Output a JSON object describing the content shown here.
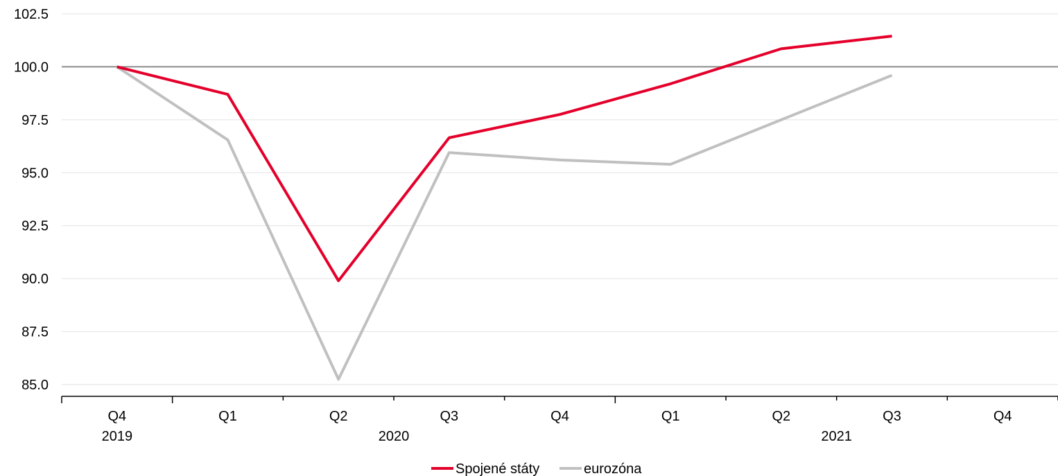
{
  "chart_data": {
    "type": "line",
    "title": "",
    "xlabel": "",
    "ylabel": "",
    "categories": [
      "Q4",
      "Q1",
      "Q2",
      "Q3",
      "Q4",
      "Q1",
      "Q2",
      "Q3",
      "Q4"
    ],
    "years": [
      {
        "label": "2019",
        "from": 0,
        "to": 0
      },
      {
        "label": "2020",
        "from": 1,
        "to": 4
      },
      {
        "label": "2021",
        "from": 5,
        "to": 8
      }
    ],
    "ylim": [
      85.0,
      102.5
    ],
    "yticks": [
      "85.0",
      "87.5",
      "90.0",
      "92.5",
      "95.0",
      "97.5",
      "100.0",
      "102.5"
    ],
    "reference_line": 100.0,
    "grid": true,
    "legend_position": "bottom-center",
    "series": [
      {
        "name": "Spojené státy",
        "color": "#e4002b",
        "values": [
          100.0,
          98.7,
          89.9,
          96.65,
          97.75,
          99.2,
          100.85,
          101.45,
          null
        ]
      },
      {
        "name": "eurozóna",
        "color": "#c0c0c0",
        "values": [
          100.0,
          96.55,
          85.25,
          95.95,
          95.6,
          95.4,
          97.5,
          99.6,
          null
        ]
      }
    ]
  }
}
